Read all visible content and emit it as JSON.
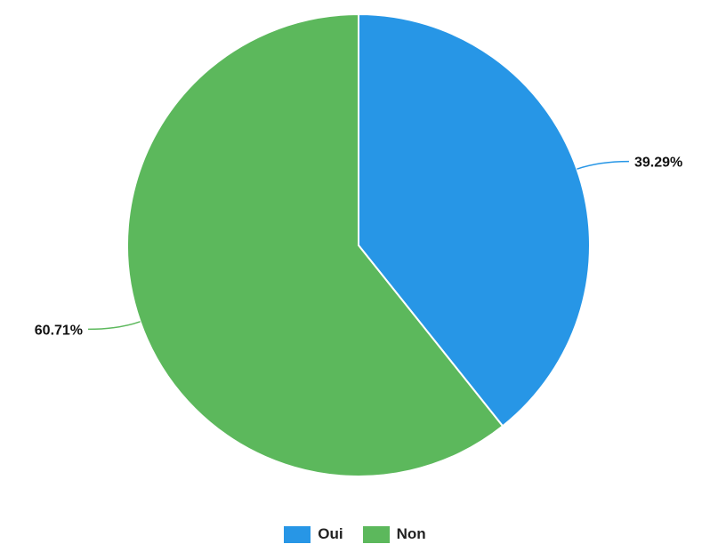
{
  "chart_data": {
    "type": "pie",
    "title": "",
    "slices": [
      {
        "name": "Oui",
        "value": 39.29,
        "label": "39.29%",
        "color": "#2796e6"
      },
      {
        "name": "Non",
        "value": 60.71,
        "label": "60.71%",
        "color": "#5cb85c"
      }
    ],
    "start_angle": "12 o'clock",
    "direction": "clockwise",
    "legend_position": "bottom-center"
  }
}
